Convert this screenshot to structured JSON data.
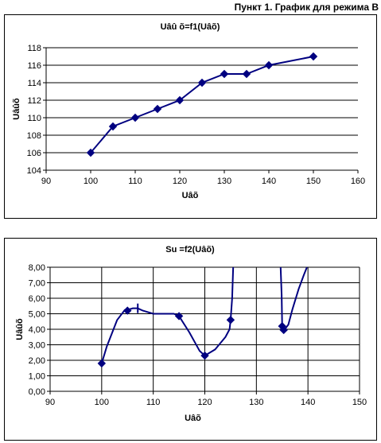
{
  "page_title": "Пункт 1. График для режима В",
  "chart_data": [
    {
      "type": "line",
      "title": "Uâû õ=f1(Uâõ)",
      "xlabel": "Uâõ",
      "ylabel": "Uâûõ",
      "xlim": [
        90,
        160
      ],
      "ylim": [
        104,
        118
      ],
      "xticks": [
        90,
        100,
        110,
        120,
        130,
        140,
        150,
        160
      ],
      "yticks": [
        104,
        106,
        108,
        110,
        112,
        114,
        116,
        118
      ],
      "ytick_decimals": 0,
      "grid": "horizontal",
      "legend": "none",
      "series_color": "#000080",
      "series": [
        {
          "x": [
            100,
            105,
            110,
            115,
            120,
            125,
            130,
            135,
            140,
            150
          ],
          "values": [
            106,
            109,
            110,
            111,
            112,
            114,
            115,
            115,
            116,
            117
          ]
        }
      ]
    },
    {
      "type": "line",
      "title": "Su =f2(Uâõ)",
      "xlabel": "Uâõ",
      "ylabel": "Uâûõ",
      "xlim": [
        90,
        150
      ],
      "ylim": [
        0,
        8
      ],
      "xticks": [
        90,
        100,
        110,
        120,
        130,
        140,
        150
      ],
      "yticks": [
        0,
        1,
        2,
        3,
        4,
        5,
        6,
        7,
        8
      ],
      "ytick_decimals": 2,
      "ytick_decimal_separator": ",",
      "grid": "both",
      "legend": "none",
      "series_color": "#000080",
      "series": [
        {
          "x": [
            100,
            105,
            107,
            110,
            115,
            120,
            125
          ],
          "values": [
            1.8,
            5.2,
            5.3,
            5.0,
            4.85,
            2.3,
            4.6
          ]
        }
      ],
      "curve": [
        [
          [
            100,
            1.8
          ],
          [
            101,
            2.9
          ],
          [
            103,
            4.6
          ],
          [
            104.5,
            5.25
          ],
          [
            105,
            5.25
          ],
          [
            106,
            5.35
          ],
          [
            107,
            5.35
          ],
          [
            108,
            5.2
          ],
          [
            110,
            5.0
          ],
          [
            112,
            5.0
          ],
          [
            114,
            5.0
          ],
          [
            115,
            4.85
          ],
          [
            117,
            3.8
          ],
          [
            119,
            2.6
          ],
          [
            120,
            2.3
          ],
          [
            122,
            2.7
          ],
          [
            124,
            3.5
          ],
          [
            124.8,
            4.0
          ],
          [
            125,
            4.6
          ],
          [
            125.3,
            6.0
          ],
          [
            125.5,
            8.0
          ]
        ],
        [
          [
            134.7,
            8.0
          ],
          [
            134.9,
            6.2
          ],
          [
            135,
            4.2
          ],
          [
            135.3,
            3.9
          ],
          [
            136.2,
            4.3
          ],
          [
            137,
            5.3
          ],
          [
            138.2,
            6.6
          ],
          [
            139.2,
            7.5
          ],
          [
            139.8,
            8.0
          ]
        ]
      ],
      "markers": [
        [
          100,
          1.8
        ],
        [
          105,
          5.2
        ],
        [
          115,
          4.85
        ],
        [
          120,
          2.3
        ],
        [
          125,
          4.6
        ],
        [
          135,
          4.2
        ],
        [
          135.3,
          3.95
        ]
      ],
      "cursor_tick": [
        107,
        5.35
      ]
    }
  ]
}
